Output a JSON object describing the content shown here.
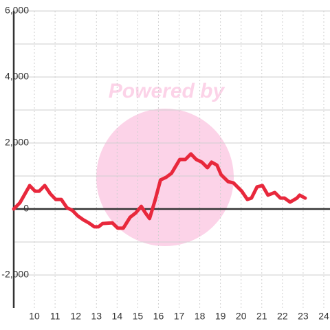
{
  "chart_data": {
    "type": "line",
    "watermark": "Powered by",
    "x": [
      9,
      9.3,
      9.77,
      10.03,
      10.23,
      10.5,
      10.77,
      11.03,
      11.3,
      11.57,
      11.83,
      12.1,
      12.37,
      12.63,
      12.9,
      13.1,
      13.3,
      13.77,
      14.03,
      14.3,
      14.63,
      14.9,
      15.17,
      15.37,
      15.57,
      15.83,
      16.1,
      16.37,
      16.63,
      17.03,
      17.3,
      17.57,
      17.83,
      18.1,
      18.37,
      18.57,
      18.83,
      19.03,
      19.37,
      19.63,
      20.03,
      20.3,
      20.5,
      20.77,
      21.03,
      21.3,
      21.63,
      21.9,
      22.1,
      22.37,
      22.7,
      22.83,
      23.1
    ],
    "series": [
      {
        "color": "#e8283c",
        "values": [
          0,
          190,
          710,
          540,
          540,
          710,
          460,
          290,
          290,
          40,
          -40,
          -210,
          -330,
          -420,
          -540,
          -540,
          -440,
          -420,
          -580,
          -580,
          -250,
          -120,
          80,
          -120,
          -290,
          250,
          880,
          960,
          1080,
          1500,
          1500,
          1670,
          1500,
          1420,
          1250,
          1420,
          1330,
          1040,
          830,
          790,
          540,
          290,
          330,
          670,
          710,
          420,
          500,
          330,
          330,
          210,
          330,
          420,
          330
        ]
      }
    ],
    "xlim": [
      9,
      24.3
    ],
    "xticks": [
      10,
      11,
      12,
      13,
      14,
      15,
      16,
      17,
      18,
      19,
      20,
      21,
      22,
      23,
      24
    ],
    "ylim": [
      -3000,
      6000
    ],
    "yticks": [
      {
        "value": -2000,
        "label": "-2,000"
      },
      0,
      {
        "value": 2000,
        "label": "2,000"
      },
      {
        "value": 4000,
        "label": "4,000"
      },
      {
        "value": 6000,
        "label": "6,000"
      }
    ],
    "grid": true
  }
}
